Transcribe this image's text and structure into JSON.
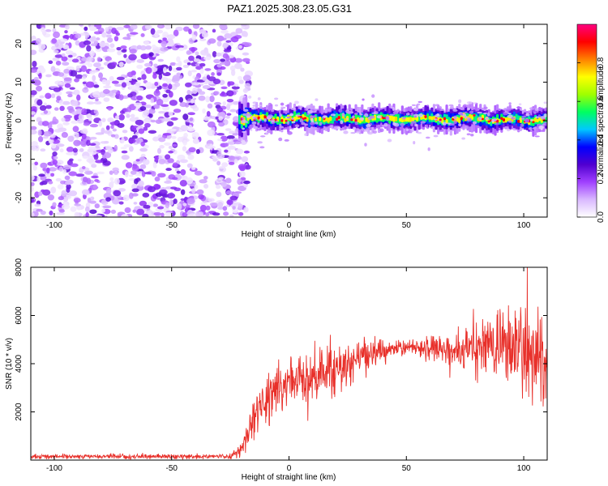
{
  "figure_title": "PAZ1.2025.308.23.05.G31",
  "chart_data": [
    {
      "type": "heatmap",
      "title": "",
      "xlabel": "Height of straight line (km)",
      "ylabel": "Frequency (Hz)",
      "xlim": [
        -110,
        110
      ],
      "ylim": [
        -25,
        25
      ],
      "xticks": [
        -100,
        -50,
        0,
        50,
        100
      ],
      "yticks": [
        20,
        10,
        0,
        -10,
        -20
      ],
      "noise_region_x": [
        -110,
        -21
      ],
      "signal_onset_x": -21,
      "signal_band_freq_hz": [
        -2,
        2
      ],
      "signal_center_freq_hz": 0.5,
      "colorbar": {
        "label": "Normalized spectral amplitude",
        "range": [
          0,
          1
        ],
        "ticks": [
          0.0,
          0.2,
          0.4,
          0.6,
          0.8
        ],
        "colors": [
          "#ffffff",
          "#d9b8ff",
          "#a040ff",
          "#5000d0",
          "#0000ff",
          "#00c8ff",
          "#00ff60",
          "#a0ff00",
          "#ffff00",
          "#ff8000",
          "#ff0000",
          "#ff0080"
        ]
      }
    },
    {
      "type": "line",
      "title": "",
      "xlabel": "Height of straight line (km)",
      "ylabel": "SNR (10 * v/v)",
      "xlim": [
        -110,
        110
      ],
      "ylim": [
        0,
        8000
      ],
      "xticks": [
        -100,
        -50,
        0,
        50,
        100
      ],
      "yticks": [
        2000,
        4000,
        6000,
        8000
      ],
      "series": [
        {
          "name": "SNR",
          "color": "#e8302a",
          "x": [
            -110,
            -80,
            -50,
            -25,
            -20,
            -15,
            -10,
            -5,
            0,
            10,
            20,
            30,
            40,
            50,
            60,
            70,
            80,
            90,
            100,
            110
          ],
          "values": [
            150,
            150,
            150,
            150,
            500,
            1800,
            2500,
            3000,
            3200,
            3500,
            3800,
            4300,
            4500,
            4700,
            4700,
            4500,
            4700,
            4800,
            4500,
            4000
          ],
          "noise_amplitude": [
            60,
            60,
            60,
            60,
            200,
            500,
            600,
            700,
            700,
            700,
            700,
            500,
            300,
            200,
            300,
            400,
            700,
            900,
            1300,
            1200
          ],
          "peak_value": 8000
        }
      ]
    }
  ]
}
